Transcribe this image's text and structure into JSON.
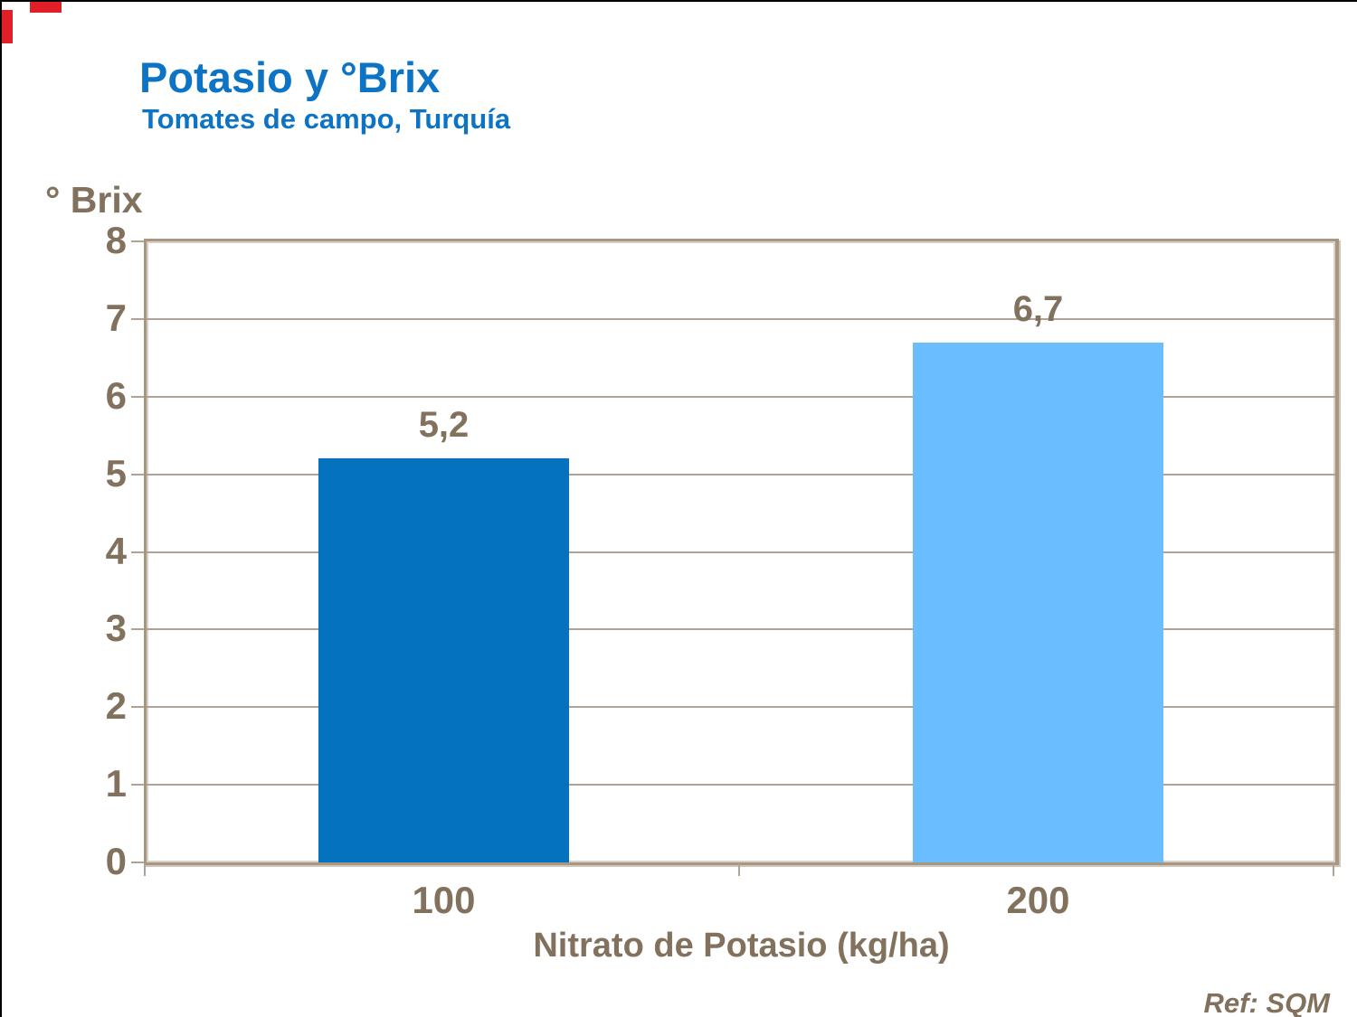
{
  "page": {
    "title": "Potasio y °Brix",
    "subtitle": "Tomates de campo, Turquía",
    "reference": "Ref: SQM"
  },
  "colors": {
    "title_blue": "#0d73c5",
    "text_brown": "#81715d",
    "bar_dark_blue": "#0572c0",
    "bar_light_blue": "#6abeff",
    "grid_line": "#b0a294",
    "plot_border": "#a79781",
    "plot_border_highlight": "#d9d1c6",
    "corner_red": "#e01f26"
  },
  "chart_data": {
    "type": "bar",
    "title": "Potasio y °Brix",
    "subtitle": "Tomates de campo, Turquía",
    "categories": [
      "100",
      "200"
    ],
    "values": [
      5.2,
      6.7
    ],
    "value_labels": [
      "5,2",
      "6,7"
    ],
    "bar_colors": [
      "#0572c0",
      "#6abeff"
    ],
    "xlabel": "Nitrato de Potasio (kg/ha)",
    "ylabel": "° Brix",
    "ylim": [
      0,
      8
    ],
    "yticks": [
      0,
      1,
      2,
      3,
      4,
      5,
      6,
      7,
      8
    ],
    "grid": true,
    "legend": false,
    "annotation": "Ref: SQM"
  }
}
